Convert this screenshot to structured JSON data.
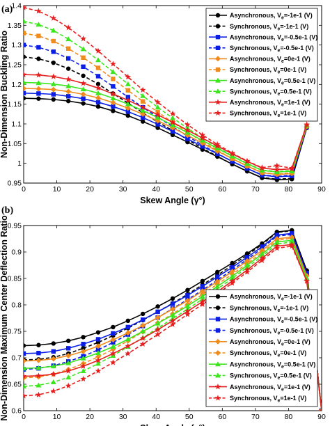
{
  "figure": {
    "marker_colors": {
      "black": "#000000",
      "blue": "#0a1ee6",
      "orange": "#f08c1e",
      "green": "#3ce61e",
      "red": "#e61e1e"
    }
  },
  "chart_data": [
    {
      "panel_tag": "(a)",
      "type": "line",
      "xlabel": "Skew Angle (γ°)",
      "ylabel": "Non-Dimension Buckling Ratio",
      "xlim": [
        0,
        90
      ],
      "ylim": [
        0.95,
        1.4
      ],
      "xticks": [
        "0",
        "10",
        "20",
        "30",
        "40",
        "50",
        "60",
        "70",
        "80",
        "90"
      ],
      "yticks": [
        "0.95",
        "1",
        "1.05",
        "1.1",
        "1.15",
        "1.2",
        "1.25",
        "1.3",
        "1.35",
        "1.4"
      ],
      "legend_position": "top-right",
      "x": [
        0,
        4.5,
        9,
        13.5,
        18,
        22.5,
        27,
        31.5,
        36,
        40.5,
        45,
        49.5,
        54,
        58.5,
        63,
        67.5,
        72,
        76.5,
        81,
        85.5
      ],
      "series": [
        {
          "name": "Asynchronous, Ve=-1e-1 (V)",
          "color": "black",
          "marker": "circle",
          "dash": false,
          "values": [
            1.165,
            1.164,
            1.162,
            1.158,
            1.152,
            1.144,
            1.133,
            1.121,
            1.106,
            1.09,
            1.072,
            1.054,
            1.035,
            1.017,
            0.998,
            0.98,
            0.963,
            0.958,
            0.96,
            1.09
          ]
        },
        {
          "name": "Synchronous, Ve=-1e-1 (V)",
          "color": "black",
          "marker": "circle",
          "dash": true,
          "values": [
            1.27,
            1.265,
            1.255,
            1.24,
            1.222,
            1.201,
            1.177,
            1.153,
            1.128,
            1.105,
            1.083,
            1.06,
            1.038,
            1.018,
            0.998,
            0.98,
            0.964,
            0.96,
            0.962,
            1.09
          ]
        },
        {
          "name": "Asynchronous, Ve=-0.5e-1 (V)",
          "color": "blue",
          "marker": "square",
          "dash": false,
          "values": [
            1.178,
            1.177,
            1.175,
            1.17,
            1.164,
            1.155,
            1.144,
            1.131,
            1.116,
            1.099,
            1.081,
            1.062,
            1.043,
            1.024,
            1.005,
            0.987,
            0.97,
            0.966,
            0.968,
            1.092
          ]
        },
        {
          "name": "Synchronous, Ve=-0.5e-1 (V)",
          "color": "blue",
          "marker": "square",
          "dash": true,
          "values": [
            1.3,
            1.294,
            1.283,
            1.266,
            1.245,
            1.221,
            1.195,
            1.168,
            1.142,
            1.117,
            1.093,
            1.069,
            1.046,
            1.025,
            1.005,
            0.987,
            0.971,
            0.967,
            0.97,
            1.092
          ]
        },
        {
          "name": "Asynchronous, Ve=0e-1 (V)",
          "color": "orange",
          "marker": "diamond",
          "dash": false,
          "values": [
            1.19,
            1.189,
            1.187,
            1.182,
            1.175,
            1.166,
            1.154,
            1.14,
            1.125,
            1.108,
            1.09,
            1.071,
            1.051,
            1.031,
            1.012,
            0.993,
            0.976,
            0.972,
            0.974,
            1.094
          ]
        },
        {
          "name": "Synchronous, Ve=0e-1 (V)",
          "color": "orange",
          "marker": "square",
          "dash": true,
          "values": [
            1.33,
            1.323,
            1.31,
            1.291,
            1.268,
            1.242,
            1.214,
            1.185,
            1.157,
            1.13,
            1.104,
            1.079,
            1.055,
            1.033,
            1.012,
            0.994,
            0.977,
            0.973,
            0.976,
            1.094
          ]
        },
        {
          "name": "Asynchronous, Ve=0.5e-1 (V)",
          "color": "green",
          "marker": "triangle",
          "dash": false,
          "values": [
            1.205,
            1.204,
            1.201,
            1.196,
            1.188,
            1.178,
            1.165,
            1.15,
            1.134,
            1.116,
            1.097,
            1.078,
            1.058,
            1.038,
            1.018,
            0.999,
            0.982,
            0.978,
            0.98,
            1.096
          ]
        },
        {
          "name": "Synchronous, Ve=0.5e-1 (V)",
          "color": "green",
          "marker": "triangle",
          "dash": true,
          "values": [
            1.36,
            1.352,
            1.337,
            1.315,
            1.29,
            1.262,
            1.232,
            1.201,
            1.171,
            1.142,
            1.115,
            1.089,
            1.064,
            1.041,
            1.019,
            1.0,
            0.983,
            0.979,
            0.982,
            1.096
          ]
        },
        {
          "name": "Asynchronous, Ve=1e-1 (V)",
          "color": "red",
          "marker": "star",
          "dash": false,
          "values": [
            1.225,
            1.224,
            1.22,
            1.213,
            1.203,
            1.191,
            1.176,
            1.16,
            1.142,
            1.123,
            1.104,
            1.084,
            1.064,
            1.044,
            1.024,
            1.005,
            0.988,
            0.984,
            0.986,
            1.098
          ]
        },
        {
          "name": "Synchronous, Ve=1e-1 (V)",
          "color": "red",
          "marker": "star",
          "dash": true,
          "values": [
            1.395,
            1.386,
            1.368,
            1.344,
            1.316,
            1.285,
            1.252,
            1.219,
            1.186,
            1.155,
            1.126,
            1.098,
            1.072,
            1.048,
            1.026,
            1.006,
            0.989,
            0.994,
            0.988,
            1.098
          ]
        }
      ]
    },
    {
      "panel_tag": "(b)",
      "type": "line",
      "xlabel": "Skew Angle (γ°)",
      "ylabel": "Non-Dimension Maximum Center Deflection Ratio",
      "xlim": [
        0,
        90
      ],
      "ylim": [
        0.6,
        0.95
      ],
      "xticks": [
        "0",
        "10",
        "20",
        "30",
        "40",
        "50",
        "60",
        "70",
        "80",
        "90"
      ],
      "yticks": [
        "0.6",
        "0.65",
        "0.7",
        "0.75",
        "0.8",
        "0.85",
        "0.9",
        "0.95"
      ],
      "legend_position": "bottom-right",
      "x": [
        0,
        4.5,
        9,
        13.5,
        18,
        22.5,
        27,
        31.5,
        36,
        40.5,
        45,
        49.5,
        54,
        58.5,
        63,
        67.5,
        72,
        76.5,
        81,
        85.5,
        90
      ],
      "series": [
        {
          "name": "Asynchronous, Ve=-1e-1 (V)",
          "color": "black",
          "marker": "circle",
          "dash": false,
          "values": [
            0.723,
            0.724,
            0.727,
            0.732,
            0.739,
            0.748,
            0.758,
            0.77,
            0.783,
            0.797,
            0.812,
            0.828,
            0.845,
            0.862,
            0.879,
            0.897,
            0.916,
            0.938,
            0.941,
            0.865,
            0.6
          ]
        },
        {
          "name": "Synchronous, Ve=-1e-1 (V)",
          "color": "black",
          "marker": "circle",
          "dash": true,
          "values": [
            0.696,
            0.697,
            0.701,
            0.708,
            0.718,
            0.729,
            0.742,
            0.756,
            0.771,
            0.787,
            0.803,
            0.82,
            0.838,
            0.856,
            0.875,
            0.894,
            0.914,
            0.937,
            0.94,
            0.865,
            0.6
          ]
        },
        {
          "name": "Asynchronous, Ve=-0.5e-1 (V)",
          "color": "blue",
          "marker": "square",
          "dash": false,
          "values": [
            0.708,
            0.709,
            0.712,
            0.718,
            0.726,
            0.735,
            0.746,
            0.758,
            0.772,
            0.787,
            0.802,
            0.818,
            0.835,
            0.853,
            0.871,
            0.89,
            0.91,
            0.932,
            0.935,
            0.86,
            0.6
          ]
        },
        {
          "name": "Synchronous, Ve=-0.5e-1 (V)",
          "color": "blue",
          "marker": "square",
          "dash": true,
          "values": [
            0.678,
            0.68,
            0.685,
            0.693,
            0.703,
            0.715,
            0.729,
            0.744,
            0.76,
            0.776,
            0.793,
            0.81,
            0.828,
            0.847,
            0.866,
            0.886,
            0.907,
            0.93,
            0.933,
            0.86,
            0.6
          ]
        },
        {
          "name": "Asynchronous, Ve=0e-1 (V)",
          "color": "orange",
          "marker": "diamond",
          "dash": false,
          "values": [
            0.694,
            0.695,
            0.698,
            0.704,
            0.712,
            0.722,
            0.734,
            0.747,
            0.761,
            0.776,
            0.792,
            0.808,
            0.826,
            0.844,
            0.863,
            0.883,
            0.903,
            0.925,
            0.928,
            0.855,
            0.6
          ]
        },
        {
          "name": "Synchronous, Ve=0e-1 (V)",
          "color": "orange",
          "marker": "diamond",
          "dash": true,
          "values": [
            0.662,
            0.664,
            0.669,
            0.678,
            0.689,
            0.702,
            0.716,
            0.732,
            0.749,
            0.766,
            0.783,
            0.801,
            0.82,
            0.839,
            0.858,
            0.878,
            0.899,
            0.922,
            0.926,
            0.855,
            0.6
          ]
        },
        {
          "name": "Asynchronous, Ve=0.5e-1 (V)",
          "color": "green",
          "marker": "triangle",
          "dash": false,
          "values": [
            0.68,
            0.681,
            0.684,
            0.69,
            0.699,
            0.709,
            0.721,
            0.735,
            0.75,
            0.765,
            0.781,
            0.798,
            0.816,
            0.835,
            0.854,
            0.875,
            0.896,
            0.919,
            0.922,
            0.85,
            0.6
          ]
        },
        {
          "name": "Synchronous, Ve=0.5e-1 (V)",
          "color": "green",
          "marker": "triangle",
          "dash": true,
          "values": [
            0.646,
            0.648,
            0.654,
            0.663,
            0.675,
            0.689,
            0.704,
            0.721,
            0.738,
            0.756,
            0.774,
            0.792,
            0.811,
            0.83,
            0.85,
            0.871,
            0.892,
            0.915,
            0.919,
            0.85,
            0.6
          ]
        },
        {
          "name": "Asynchronous, Ve=1e-1 (V)",
          "color": "red",
          "marker": "star",
          "dash": false,
          "values": [
            0.665,
            0.666,
            0.669,
            0.675,
            0.684,
            0.695,
            0.708,
            0.722,
            0.737,
            0.753,
            0.77,
            0.788,
            0.806,
            0.825,
            0.845,
            0.866,
            0.888,
            0.911,
            0.914,
            0.845,
            0.6
          ]
        },
        {
          "name": "Synchronous, Ve=1e-1 (V)",
          "color": "red",
          "marker": "star",
          "dash": true,
          "values": [
            0.628,
            0.63,
            0.637,
            0.647,
            0.66,
            0.675,
            0.691,
            0.708,
            0.726,
            0.744,
            0.763,
            0.782,
            0.801,
            0.821,
            0.841,
            0.862,
            0.884,
            0.907,
            0.911,
            0.845,
            0.6
          ]
        }
      ]
    }
  ]
}
